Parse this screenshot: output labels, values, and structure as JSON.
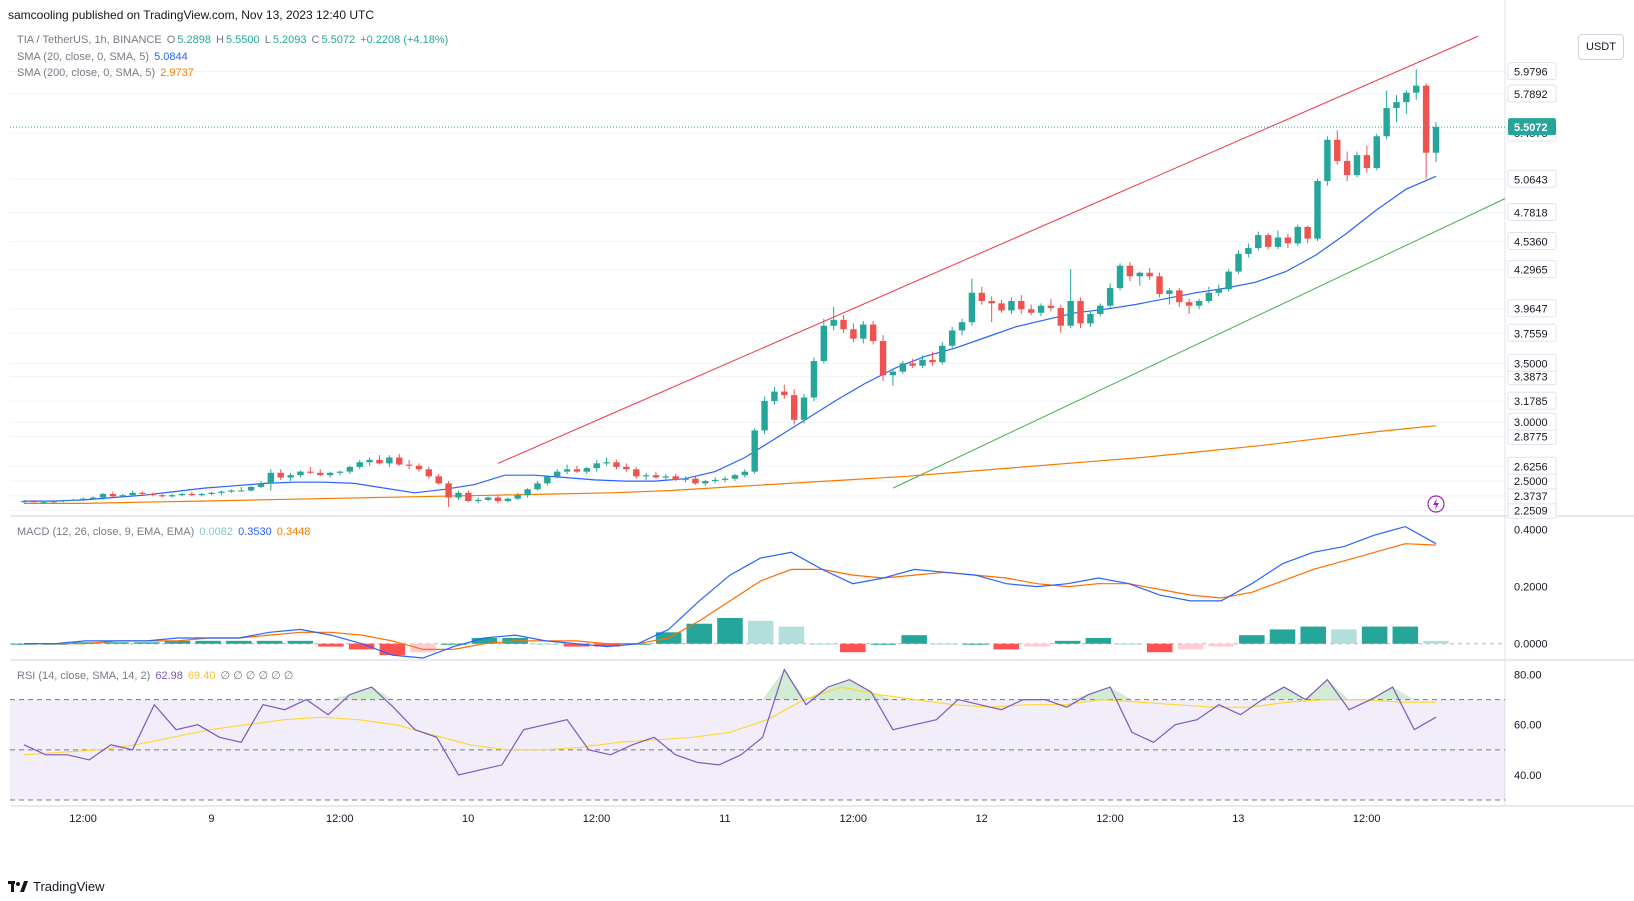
{
  "header": {
    "published": "samcooling published on TradingView.com, Nov 13, 2023 12:40 UTC"
  },
  "legend": {
    "symbol": "TIA / TetherUS, 1h, BINANCE",
    "o_label": "O",
    "o": "5.2898",
    "h_label": "H",
    "h": "5.5500",
    "l_label": "L",
    "l": "5.2093",
    "c_label": "C",
    "c": "5.5072",
    "change": "+0.2208 (+4.18%)",
    "sma20_label": "SMA (20, close, 0, SMA, 5)",
    "sma20": "5.0844",
    "sma200_label": "SMA (200, close, 0, SMA, 5)",
    "sma200": "2.9737",
    "macd_label": "MACD (12, 26, close, 9, EMA, EMA)",
    "macd_hist": "0.0082",
    "macd_line": "0.3530",
    "macd_signal": "0.3448",
    "rsi_label": "RSI (14, close, SMA, 14, 2)",
    "rsi": "62.98",
    "rsi_ma": "69.40",
    "rsi_empty": "∅ ∅ ∅ ∅ ∅ ∅"
  },
  "currency_button": "USDT",
  "brand": "TradingView",
  "colors": {
    "up": "#26a69a",
    "down": "#ef5350",
    "sma20": "#2962ff",
    "sma200": "#f57c00",
    "rsi": "#7e57c2",
    "rsi_ma": "#fdd835",
    "upper_trend": "#f23645",
    "lower_trend": "#4caf50"
  },
  "chart_data": [
    {
      "type": "candlestick",
      "title": "TIA / TetherUS, 1h, BINANCE",
      "x_tick_labels": [
        "12:00",
        "9",
        "12:00",
        "10",
        "12:00",
        "11",
        "12:00",
        "12",
        "12:00",
        "13",
        "12:00"
      ],
      "y_tick_labels": [
        "2.2509",
        "2.3737",
        "2.5000",
        "2.6256",
        "2.8775",
        "3.0000",
        "3.1785",
        "3.3873",
        "3.5000",
        "3.7559",
        "3.9647",
        "4.2965",
        "4.5360",
        "4.7818",
        "5.0643",
        "5.4575",
        "5.7892",
        "5.9796"
      ],
      "price_label": "5.5072",
      "ylim": [
        2.22,
        6.35
      ],
      "candles": [
        [
          2.32,
          2.34,
          2.31,
          2.33
        ],
        [
          2.33,
          2.34,
          2.32,
          2.32
        ],
        [
          2.32,
          2.33,
          2.31,
          2.32
        ],
        [
          2.32,
          2.34,
          2.31,
          2.33
        ],
        [
          2.33,
          2.34,
          2.32,
          2.34
        ],
        [
          2.34,
          2.35,
          2.33,
          2.34
        ],
        [
          2.34,
          2.36,
          2.33,
          2.35
        ],
        [
          2.35,
          2.37,
          2.34,
          2.36
        ],
        [
          2.36,
          2.4,
          2.34,
          2.39
        ],
        [
          2.39,
          2.41,
          2.36,
          2.37
        ],
        [
          2.37,
          2.39,
          2.36,
          2.38
        ],
        [
          2.38,
          2.42,
          2.37,
          2.4
        ],
        [
          2.4,
          2.41,
          2.38,
          2.39
        ],
        [
          2.39,
          2.4,
          2.37,
          2.38
        ],
        [
          2.38,
          2.39,
          2.36,
          2.37
        ],
        [
          2.37,
          2.39,
          2.36,
          2.38
        ],
        [
          2.38,
          2.4,
          2.37,
          2.39
        ],
        [
          2.39,
          2.41,
          2.37,
          2.38
        ],
        [
          2.38,
          2.4,
          2.37,
          2.39
        ],
        [
          2.39,
          2.41,
          2.38,
          2.4
        ],
        [
          2.4,
          2.42,
          2.38,
          2.41
        ],
        [
          2.41,
          2.43,
          2.4,
          2.42
        ],
        [
          2.42,
          2.45,
          2.41,
          2.42
        ],
        [
          2.42,
          2.46,
          2.41,
          2.45
        ],
        [
          2.45,
          2.5,
          2.44,
          2.48
        ],
        [
          2.48,
          2.6,
          2.42,
          2.57
        ],
        [
          2.57,
          2.6,
          2.51,
          2.53
        ],
        [
          2.53,
          2.57,
          2.5,
          2.55
        ],
        [
          2.55,
          2.59,
          2.53,
          2.58
        ],
        [
          2.58,
          2.62,
          2.56,
          2.57
        ],
        [
          2.57,
          2.6,
          2.54,
          2.55
        ],
        [
          2.55,
          2.58,
          2.53,
          2.57
        ],
        [
          2.57,
          2.59,
          2.55,
          2.58
        ],
        [
          2.58,
          2.63,
          2.56,
          2.62
        ],
        [
          2.62,
          2.68,
          2.6,
          2.66
        ],
        [
          2.66,
          2.7,
          2.63,
          2.68
        ],
        [
          2.68,
          2.72,
          2.64,
          2.65
        ],
        [
          2.65,
          2.72,
          2.62,
          2.7
        ],
        [
          2.7,
          2.73,
          2.63,
          2.64
        ],
        [
          2.64,
          2.68,
          2.6,
          2.63
        ],
        [
          2.63,
          2.65,
          2.58,
          2.6
        ],
        [
          2.6,
          2.62,
          2.52,
          2.54
        ],
        [
          2.54,
          2.56,
          2.47,
          2.48
        ],
        [
          2.48,
          2.5,
          2.28,
          2.36
        ],
        [
          2.36,
          2.42,
          2.34,
          2.4
        ],
        [
          2.4,
          2.42,
          2.32,
          2.33
        ],
        [
          2.33,
          2.36,
          2.31,
          2.34
        ],
        [
          2.34,
          2.37,
          2.33,
          2.36
        ],
        [
          2.36,
          2.38,
          2.31,
          2.33
        ],
        [
          2.33,
          2.36,
          2.32,
          2.35
        ],
        [
          2.35,
          2.4,
          2.34,
          2.38
        ],
        [
          2.38,
          2.44,
          2.36,
          2.43
        ],
        [
          2.43,
          2.5,
          2.42,
          2.48
        ],
        [
          2.48,
          2.55,
          2.46,
          2.54
        ],
        [
          2.54,
          2.6,
          2.52,
          2.58
        ],
        [
          2.58,
          2.64,
          2.56,
          2.6
        ],
        [
          2.6,
          2.63,
          2.57,
          2.58
        ],
        [
          2.58,
          2.62,
          2.56,
          2.61
        ],
        [
          2.61,
          2.68,
          2.58,
          2.65
        ],
        [
          2.65,
          2.7,
          2.63,
          2.66
        ],
        [
          2.66,
          2.68,
          2.6,
          2.62
        ],
        [
          2.62,
          2.65,
          2.58,
          2.6
        ],
        [
          2.6,
          2.62,
          2.52,
          2.54
        ],
        [
          2.54,
          2.57,
          2.51,
          2.55
        ],
        [
          2.55,
          2.58,
          2.52,
          2.53
        ],
        [
          2.53,
          2.56,
          2.51,
          2.54
        ],
        [
          2.54,
          2.56,
          2.5,
          2.51
        ],
        [
          2.51,
          2.54,
          2.49,
          2.52
        ],
        [
          2.52,
          2.54,
          2.47,
          2.48
        ],
        [
          2.48,
          2.51,
          2.46,
          2.5
        ],
        [
          2.5,
          2.53,
          2.48,
          2.51
        ],
        [
          2.51,
          2.54,
          2.49,
          2.52
        ],
        [
          2.52,
          2.56,
          2.5,
          2.55
        ],
        [
          2.55,
          2.6,
          2.53,
          2.58
        ],
        [
          2.58,
          2.95,
          2.56,
          2.93
        ],
        [
          2.93,
          3.22,
          2.9,
          3.18
        ],
        [
          3.18,
          3.3,
          3.15,
          3.26
        ],
        [
          3.26,
          3.32,
          3.2,
          3.23
        ],
        [
          3.23,
          3.28,
          2.98,
          3.02
        ],
        [
          3.02,
          3.24,
          2.99,
          3.21
        ],
        [
          3.21,
          3.55,
          3.18,
          3.52
        ],
        [
          3.52,
          3.88,
          3.5,
          3.82
        ],
        [
          3.82,
          3.98,
          3.78,
          3.87
        ],
        [
          3.87,
          3.91,
          3.76,
          3.79
        ],
        [
          3.79,
          3.84,
          3.68,
          3.71
        ],
        [
          3.71,
          3.86,
          3.67,
          3.83
        ],
        [
          3.83,
          3.86,
          3.66,
          3.69
        ],
        [
          3.69,
          3.74,
          3.35,
          3.4
        ],
        [
          3.4,
          3.45,
          3.31,
          3.43
        ],
        [
          3.43,
          3.52,
          3.41,
          3.5
        ],
        [
          3.5,
          3.54,
          3.46,
          3.48
        ],
        [
          3.48,
          3.57,
          3.46,
          3.53
        ],
        [
          3.53,
          3.6,
          3.48,
          3.51
        ],
        [
          3.51,
          3.68,
          3.49,
          3.65
        ],
        [
          3.65,
          3.81,
          3.62,
          3.78
        ],
        [
          3.78,
          3.88,
          3.74,
          3.85
        ],
        [
          3.85,
          4.22,
          3.82,
          4.1
        ],
        [
          4.1,
          4.15,
          4.0,
          4.03
        ],
        [
          4.03,
          4.07,
          3.85,
          4.01
        ],
        [
          4.01,
          4.04,
          3.93,
          3.95
        ],
        [
          3.95,
          4.06,
          3.92,
          4.03
        ],
        [
          4.03,
          4.08,
          3.92,
          3.96
        ],
        [
          3.96,
          4.0,
          3.91,
          3.93
        ],
        [
          3.93,
          4.01,
          3.9,
          3.99
        ],
        [
          3.99,
          4.05,
          3.94,
          3.97
        ],
        [
          3.97,
          4.0,
          3.76,
          3.82
        ],
        [
          3.82,
          4.3,
          3.8,
          4.03
        ],
        [
          4.03,
          4.06,
          3.8,
          3.84
        ],
        [
          3.84,
          3.94,
          3.81,
          3.92
        ],
        [
          3.92,
          4.01,
          3.9,
          3.99
        ],
        [
          3.99,
          4.18,
          3.97,
          4.14
        ],
        [
          4.14,
          4.35,
          4.12,
          4.33
        ],
        [
          4.33,
          4.36,
          4.2,
          4.24
        ],
        [
          4.24,
          4.28,
          4.16,
          4.27
        ],
        [
          4.27,
          4.31,
          4.21,
          4.24
        ],
        [
          4.24,
          4.27,
          4.06,
          4.09
        ],
        [
          4.09,
          4.14,
          4.0,
          4.12
        ],
        [
          4.12,
          4.14,
          3.98,
          4.02
        ],
        [
          4.02,
          4.05,
          3.92,
          3.99
        ],
        [
          3.99,
          4.05,
          3.96,
          4.03
        ],
        [
          4.03,
          4.15,
          4.01,
          4.1
        ],
        [
          4.1,
          4.17,
          4.07,
          4.13
        ],
        [
          4.13,
          4.3,
          4.11,
          4.28
        ],
        [
          4.28,
          4.46,
          4.26,
          4.43
        ],
        [
          4.43,
          4.52,
          4.4,
          4.48
        ],
        [
          4.48,
          4.62,
          4.46,
          4.59
        ],
        [
          4.59,
          4.61,
          4.47,
          4.49
        ],
        [
          4.49,
          4.63,
          4.47,
          4.57
        ],
        [
          4.57,
          4.6,
          4.48,
          4.52
        ],
        [
          4.52,
          4.68,
          4.5,
          4.66
        ],
        [
          4.66,
          4.67,
          4.52,
          4.56
        ],
        [
          4.56,
          5.07,
          4.54,
          5.05
        ],
        [
          5.05,
          5.43,
          5.01,
          5.4
        ],
        [
          5.4,
          5.48,
          5.19,
          5.22
        ],
        [
          5.22,
          5.3,
          5.05,
          5.1
        ],
        [
          5.1,
          5.3,
          5.08,
          5.27
        ],
        [
          5.27,
          5.35,
          5.12,
          5.16
        ],
        [
          5.16,
          5.45,
          5.14,
          5.43
        ],
        [
          5.43,
          5.82,
          5.4,
          5.67
        ],
        [
          5.67,
          5.78,
          5.55,
          5.72
        ],
        [
          5.72,
          5.82,
          5.62,
          5.8
        ],
        [
          5.8,
          6.0,
          5.74,
          5.86
        ],
        [
          5.86,
          5.88,
          5.07,
          5.29
        ],
        [
          5.29,
          5.55,
          5.21,
          5.51
        ]
      ],
      "sma20": [
        2.33,
        2.33,
        2.34,
        2.36,
        2.38,
        2.41,
        2.44,
        2.46,
        2.48,
        2.49,
        2.49,
        2.48,
        2.44,
        2.4,
        2.43,
        2.47,
        2.55,
        2.55,
        2.53,
        2.51,
        2.5,
        2.5,
        2.52,
        2.58,
        2.7,
        2.86,
        3.02,
        3.18,
        3.33,
        3.46,
        3.56,
        3.63,
        3.72,
        3.81,
        3.87,
        3.93,
        3.96,
        4.0,
        4.05,
        4.1,
        4.14,
        4.19,
        4.28,
        4.42,
        4.6,
        4.8,
        4.98,
        5.09
      ],
      "sma200": [
        2.31,
        2.31,
        2.32,
        2.33,
        2.34,
        2.35,
        2.36,
        2.37,
        2.38,
        2.39,
        2.4,
        2.42,
        2.45,
        2.48,
        2.51,
        2.54,
        2.58,
        2.62,
        2.66,
        2.7,
        2.75,
        2.8,
        2.86,
        2.92,
        2.97
      ],
      "annotations": [
        "upper red trendline",
        "lower green trendline"
      ]
    },
    {
      "type": "line",
      "title": "MACD (12, 26, close, 9, EMA, EMA)",
      "y_tick_labels": [
        "0.4000",
        "0.2000",
        "0.0000"
      ],
      "ylim": [
        -0.05,
        0.44
      ],
      "series": [
        {
          "name": "MACD",
          "values": [
            0.0,
            0.0,
            0.01,
            0.01,
            0.01,
            0.02,
            0.02,
            0.02,
            0.04,
            0.05,
            0.03,
            0.0,
            -0.04,
            -0.05,
            -0.01,
            0.02,
            0.03,
            0.01,
            0.0,
            -0.01,
            0.0,
            0.05,
            0.15,
            0.24,
            0.3,
            0.32,
            0.26,
            0.21,
            0.23,
            0.26,
            0.25,
            0.24,
            0.21,
            0.2,
            0.21,
            0.23,
            0.21,
            0.17,
            0.15,
            0.15,
            0.21,
            0.28,
            0.32,
            0.34,
            0.38,
            0.41,
            0.35
          ]
        },
        {
          "name": "Signal",
          "values": [
            0.0,
            0.0,
            0.0,
            0.01,
            0.01,
            0.01,
            0.02,
            0.02,
            0.03,
            0.04,
            0.04,
            0.03,
            0.01,
            -0.02,
            -0.02,
            0.0,
            0.01,
            0.01,
            0.01,
            0.0,
            0.0,
            0.02,
            0.08,
            0.15,
            0.22,
            0.26,
            0.26,
            0.24,
            0.23,
            0.24,
            0.25,
            0.24,
            0.23,
            0.21,
            0.2,
            0.21,
            0.21,
            0.19,
            0.17,
            0.16,
            0.18,
            0.22,
            0.26,
            0.29,
            0.32,
            0.35,
            0.345
          ]
        }
      ],
      "histogram": [
        0.0,
        0.0,
        0.005,
        0.005,
        0.005,
        0.01,
        0.01,
        0.01,
        0.01,
        0.01,
        -0.01,
        -0.02,
        -0.04,
        -0.03,
        0.0,
        0.02,
        0.02,
        0.0,
        -0.01,
        -0.01,
        0.0,
        0.04,
        0.07,
        0.09,
        0.08,
        0.06,
        0.0,
        -0.03,
        0.0,
        0.03,
        0.0,
        0.0,
        -0.02,
        -0.01,
        0.01,
        0.02,
        0.0,
        -0.03,
        -0.02,
        -0.01,
        0.03,
        0.05,
        0.06,
        0.05,
        0.06,
        0.06,
        0.01
      ]
    },
    {
      "type": "line",
      "title": "RSI (14, close, SMA, 14, 2)",
      "y_tick_labels": [
        "80.00",
        "60.00",
        "40.00"
      ],
      "ylim": [
        30,
        85
      ],
      "bands": [
        70,
        50,
        30
      ],
      "series": [
        {
          "name": "RSI",
          "values": [
            52,
            48,
            48,
            46,
            52,
            50,
            68,
            58,
            60,
            55,
            53,
            68,
            66,
            70,
            64,
            72,
            75,
            67,
            58,
            55,
            40,
            42,
            44,
            58,
            60,
            62,
            50,
            48,
            52,
            55,
            48,
            45,
            44,
            48,
            55,
            82,
            68,
            75,
            78,
            73,
            58,
            60,
            62,
            70,
            68,
            66,
            70,
            70,
            67,
            72,
            75,
            57,
            53,
            60,
            62,
            68,
            64,
            70,
            75,
            70,
            78,
            66,
            70,
            75,
            58,
            63
          ]
        },
        {
          "name": "RSI-based MA",
          "values": [
            48,
            49,
            50,
            52,
            55,
            58,
            60,
            62,
            63,
            62,
            60,
            56,
            52,
            50,
            50,
            51,
            53,
            54,
            55,
            57,
            62,
            70,
            75,
            72,
            70,
            68,
            67,
            68,
            68,
            70,
            69,
            68,
            67,
            67,
            69,
            70,
            70,
            69,
            69
          ]
        }
      ]
    }
  ]
}
